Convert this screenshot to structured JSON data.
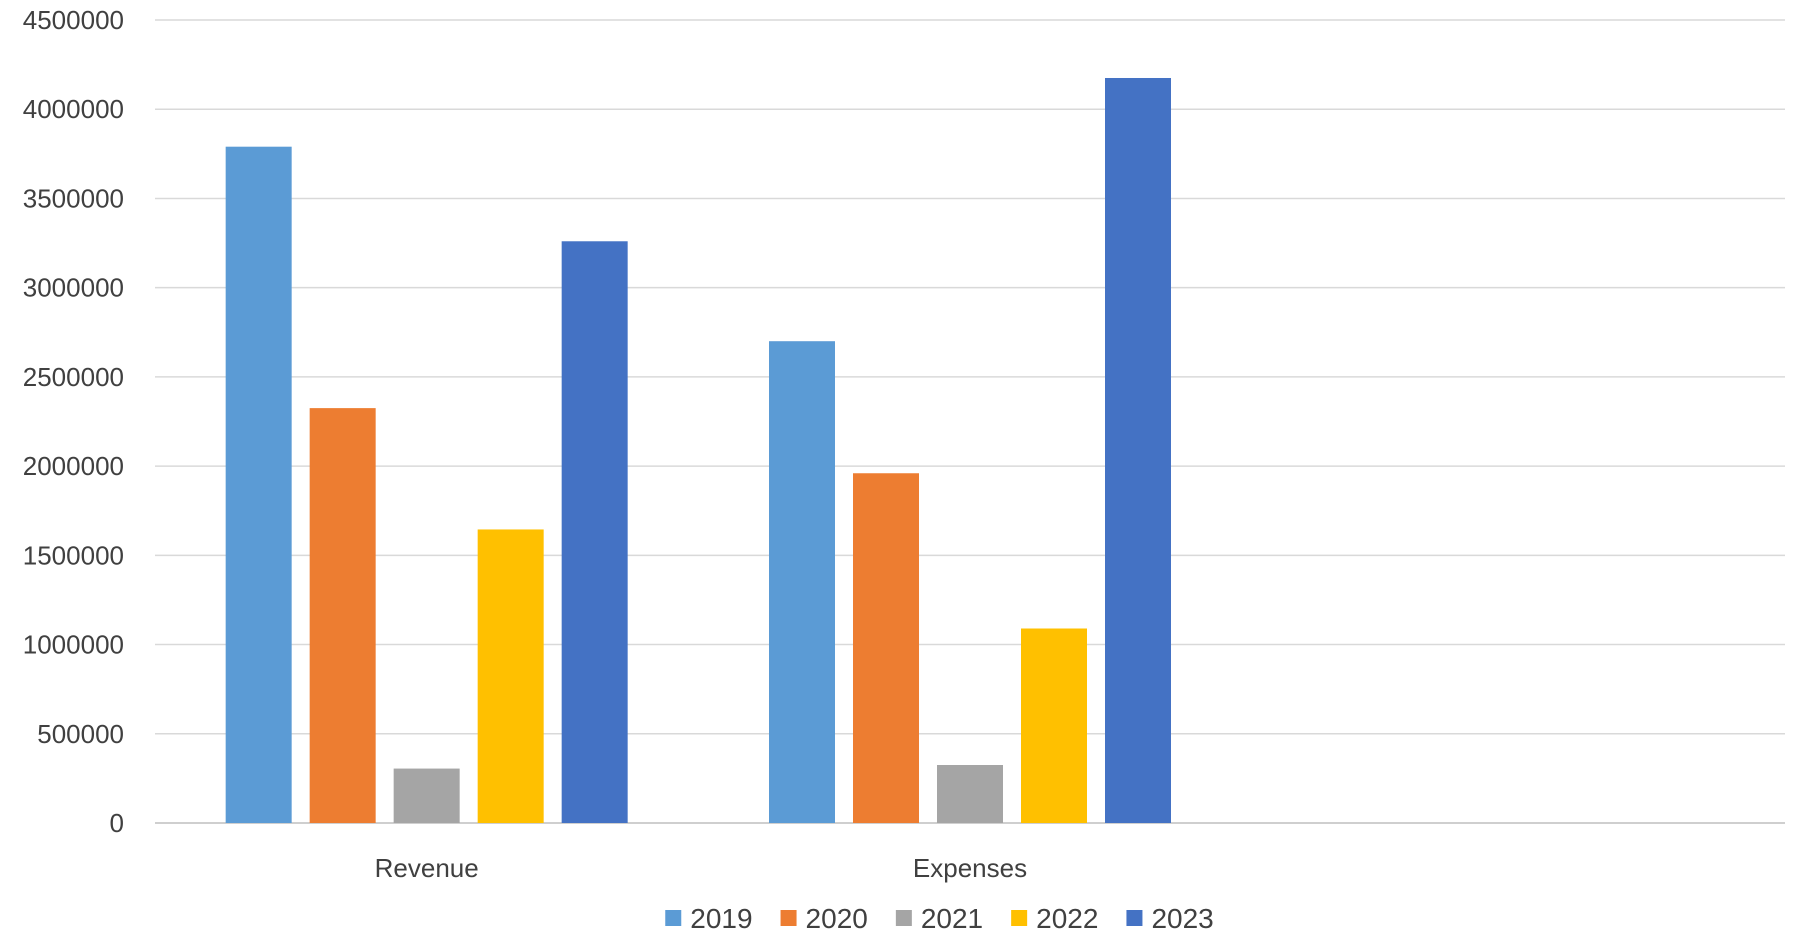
{
  "chart_data": {
    "type": "bar",
    "categories": [
      "Revenue",
      "Expenses"
    ],
    "series": [
      {
        "name": "2019",
        "color": "#5B9BD5",
        "values": [
          3790000,
          2700000
        ]
      },
      {
        "name": "2020",
        "color": "#ED7D31",
        "values": [
          2325000,
          1960000
        ]
      },
      {
        "name": "2021",
        "color": "#A5A5A5",
        "values": [
          305000,
          325000
        ]
      },
      {
        "name": "2022",
        "color": "#FFC000",
        "values": [
          1645000,
          1090000
        ]
      },
      {
        "name": "2023",
        "color": "#4472C4",
        "values": [
          3260000,
          4175000
        ]
      }
    ],
    "ylim": [
      0,
      4500000
    ],
    "yticks": [
      0,
      500000,
      1000000,
      1500000,
      2000000,
      2500000,
      3000000,
      3500000,
      4000000,
      4500000
    ],
    "grid": true,
    "legend": "bottom",
    "title": "",
    "xlabel": "",
    "ylabel": ""
  }
}
